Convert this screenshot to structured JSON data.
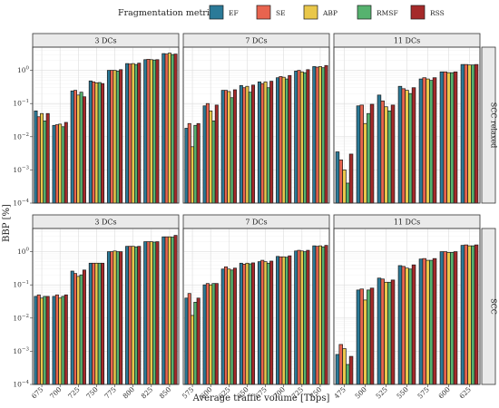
{
  "chart_data": {
    "type": "bar",
    "legend_title": "Fragmentation metric",
    "legend_position": "top",
    "xlabel": "Average traffic volume [Tbps]",
    "ylabel": "BBP [%]",
    "y_scale": "log",
    "ylim": [
      0.0001,
      5
    ],
    "y_ticks": [
      {
        "value": 0.0001,
        "base": "10",
        "exp": "−4"
      },
      {
        "value": 0.001,
        "base": "10",
        "exp": "−3"
      },
      {
        "value": 0.01,
        "base": "10",
        "exp": "−2"
      },
      {
        "value": 0.1,
        "base": "10",
        "exp": "−1"
      },
      {
        "value": 1,
        "base": "10",
        "exp": "0"
      }
    ],
    "grid": true,
    "series": [
      {
        "name": "EF",
        "color": "#2b7a98"
      },
      {
        "name": "SE",
        "color": "#e8644f"
      },
      {
        "name": "ABP",
        "color": "#e9c74a"
      },
      {
        "name": "RMSF",
        "color": "#56b26f"
      },
      {
        "name": "RSS",
        "color": "#a52a2a"
      }
    ],
    "columns": [
      {
        "label": "3 DCs",
        "categories": [
          "675",
          "700",
          "725",
          "750",
          "775",
          "800",
          "825",
          "850"
        ]
      },
      {
        "label": "7 DCs",
        "categories": [
          "575",
          "600",
          "625",
          "650",
          "675",
          "700",
          "725",
          "750"
        ]
      },
      {
        "label": "11 DCs",
        "categories": [
          "475",
          "500",
          "525",
          "550",
          "575",
          "600",
          "625"
        ]
      }
    ],
    "rows": [
      {
        "label": "SCC relaxed"
      },
      {
        "label": "SCC"
      }
    ],
    "panels": [
      {
        "column": "3 DCs",
        "row": "SCC relaxed",
        "values": [
          [
            0.06,
            0.04,
            0.05,
            0.03,
            0.05
          ],
          [
            0.022,
            0.023,
            0.024,
            0.02,
            0.027
          ],
          [
            0.24,
            0.25,
            0.18,
            0.22,
            0.16
          ],
          [
            0.48,
            0.45,
            0.42,
            0.43,
            0.4
          ],
          [
            1.0,
            1.0,
            1.0,
            0.95,
            1.05
          ],
          [
            1.6,
            1.55,
            1.6,
            1.5,
            1.65
          ],
          [
            2.1,
            2.15,
            2.1,
            2.05,
            2.1
          ],
          [
            3.2,
            3.1,
            3.3,
            3.0,
            3.1
          ]
        ]
      },
      {
        "column": "7 DCs",
        "row": "SCC relaxed",
        "values": [
          [
            0.018,
            0.025,
            0.005,
            0.022,
            0.025
          ],
          [
            0.085,
            0.1,
            0.06,
            0.03,
            0.09
          ],
          [
            0.25,
            0.25,
            0.23,
            0.15,
            0.26
          ],
          [
            0.35,
            0.3,
            0.33,
            0.22,
            0.36
          ],
          [
            0.45,
            0.4,
            0.45,
            0.3,
            0.47
          ],
          [
            0.6,
            0.65,
            0.62,
            0.55,
            0.7
          ],
          [
            0.95,
            1.0,
            0.9,
            0.85,
            1.05
          ],
          [
            1.3,
            1.25,
            1.3,
            1.2,
            1.4
          ]
        ]
      },
      {
        "column": "11 DCs",
        "row": "SCC relaxed",
        "values": [
          [
            0.0035,
            0.002,
            0.001,
            0.0004,
            0.003
          ],
          [
            0.085,
            0.09,
            0.025,
            0.05,
            0.095
          ],
          [
            0.18,
            0.12,
            0.08,
            0.06,
            0.09
          ],
          [
            0.33,
            0.28,
            0.25,
            0.2,
            0.3
          ],
          [
            0.55,
            0.6,
            0.55,
            0.5,
            0.6
          ],
          [
            0.9,
            0.9,
            0.85,
            0.85,
            0.9
          ],
          [
            1.5,
            1.5,
            1.45,
            1.45,
            1.5
          ]
        ]
      },
      {
        "column": "3 DCs",
        "row": "SCC",
        "values": [
          [
            0.045,
            0.05,
            0.04,
            0.045,
            0.045
          ],
          [
            0.045,
            0.05,
            0.04,
            0.045,
            0.05
          ],
          [
            0.26,
            0.22,
            0.18,
            0.2,
            0.28
          ],
          [
            0.45,
            0.45,
            0.45,
            0.45,
            0.45
          ],
          [
            1.0,
            1.0,
            1.05,
            1.0,
            1.0
          ],
          [
            1.45,
            1.45,
            1.45,
            1.4,
            1.45
          ],
          [
            2.0,
            2.0,
            2.0,
            1.95,
            2.0
          ],
          [
            2.8,
            2.8,
            2.8,
            2.75,
            3.1
          ]
        ]
      },
      {
        "column": "7 DCs",
        "row": "SCC",
        "values": [
          [
            0.04,
            0.055,
            0.012,
            0.03,
            0.04
          ],
          [
            0.1,
            0.11,
            0.1,
            0.11,
            0.11
          ],
          [
            0.3,
            0.35,
            0.3,
            0.28,
            0.32
          ],
          [
            0.45,
            0.42,
            0.45,
            0.43,
            0.46
          ],
          [
            0.5,
            0.55,
            0.5,
            0.45,
            0.52
          ],
          [
            0.72,
            0.7,
            0.7,
            0.68,
            0.75
          ],
          [
            1.05,
            1.1,
            1.05,
            1.0,
            1.1
          ],
          [
            1.5,
            1.45,
            1.5,
            1.4,
            1.55
          ]
        ]
      },
      {
        "column": "11 DCs",
        "row": "SCC",
        "values": [
          [
            0.0008,
            0.0016,
            0.0012,
            0.0004,
            0.0007
          ],
          [
            0.07,
            0.075,
            0.035,
            0.07,
            0.08
          ],
          [
            0.16,
            0.15,
            0.12,
            0.12,
            0.14
          ],
          [
            0.38,
            0.36,
            0.32,
            0.3,
            0.4
          ],
          [
            0.6,
            0.62,
            0.55,
            0.55,
            0.62
          ],
          [
            1.0,
            1.0,
            0.95,
            0.95,
            1.0
          ],
          [
            1.55,
            1.6,
            1.5,
            1.5,
            1.6
          ]
        ]
      }
    ]
  }
}
